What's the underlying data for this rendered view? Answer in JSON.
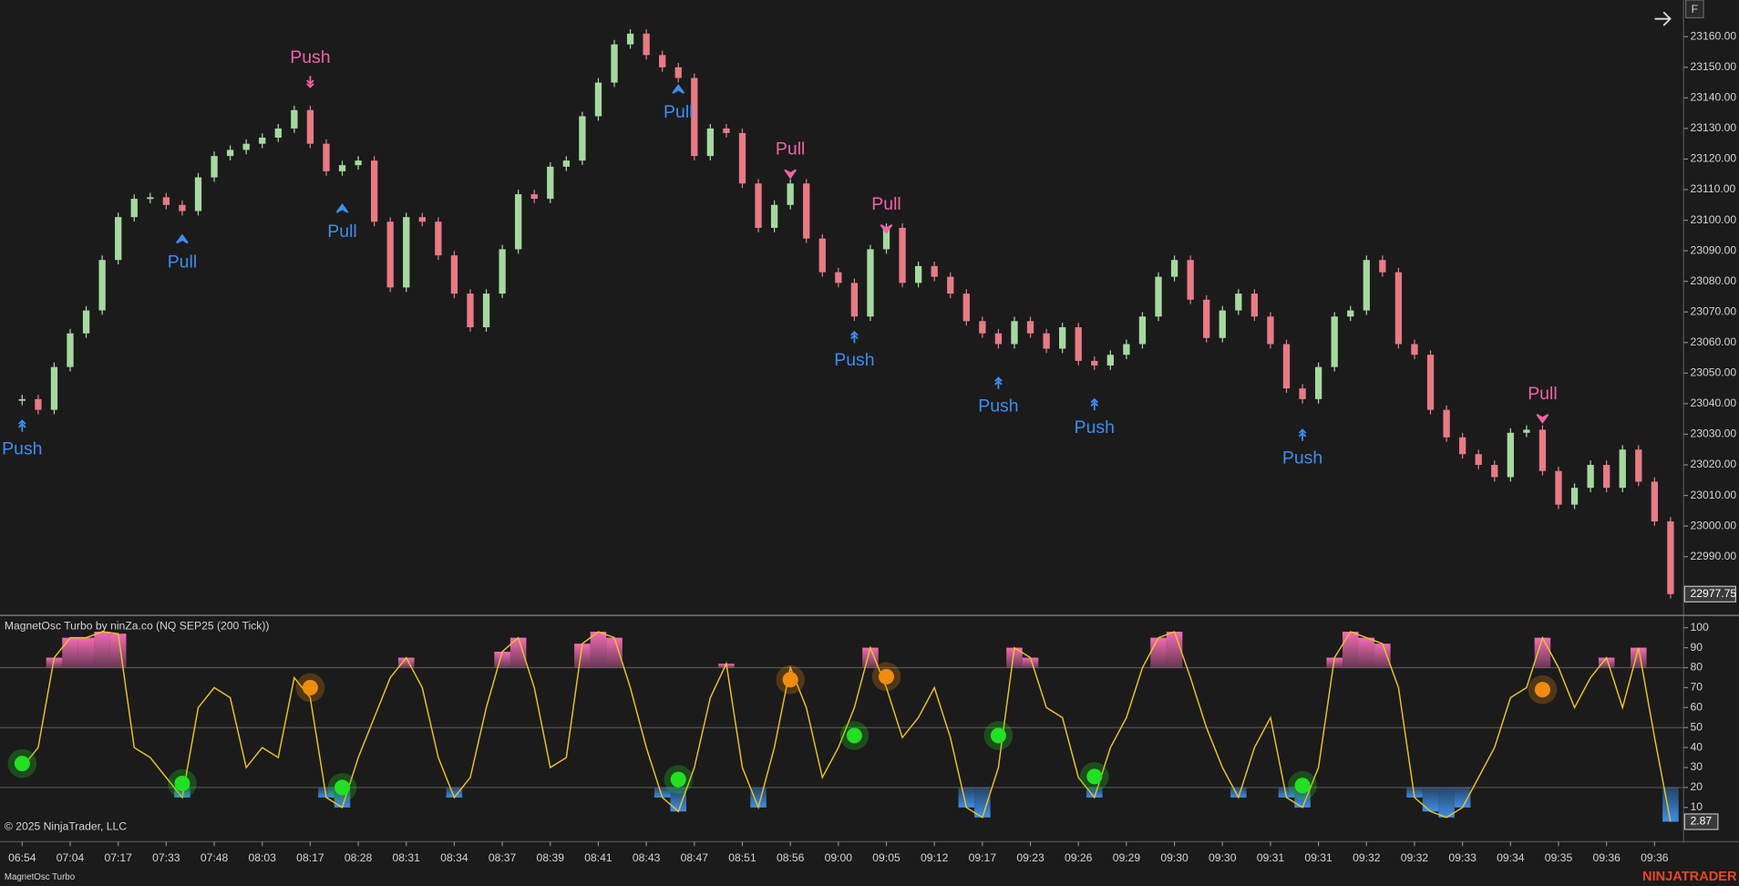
{
  "chart_data": [
    {
      "type": "candlestick",
      "categories": [
        "06:54",
        null,
        null,
        "07:04",
        null,
        null,
        "07:17",
        null,
        null,
        "07:33",
        null,
        null,
        "07:48",
        null,
        null,
        "08:03",
        null,
        null,
        "08:17",
        null,
        null,
        "08:28",
        null,
        null,
        "08:31",
        null,
        null,
        "08:34",
        null,
        null,
        "08:37",
        null,
        null,
        "08:39",
        null,
        null,
        "08:41",
        null,
        null,
        "08:43",
        null,
        null,
        "08:47",
        null,
        null,
        "08:51",
        null,
        null,
        "08:56",
        null,
        null,
        "09:00",
        null,
        null,
        "09:05",
        null,
        null,
        "09:12",
        null,
        null,
        "09:17",
        null,
        null,
        "09:23",
        null,
        null,
        "09:26",
        null,
        null,
        "09:29",
        null,
        null,
        "09:30",
        null,
        null,
        "09:30",
        null,
        null,
        "09:31",
        null,
        null,
        "09:31",
        null,
        null,
        "09:32",
        null,
        null,
        "09:32",
        null,
        null,
        "09:33",
        null,
        null,
        "09:34",
        null,
        null,
        "09:35",
        null,
        null,
        "09:36",
        null,
        null,
        "09:36",
        null
      ],
      "values": [
        23041.5,
        23038,
        23052,
        23063,
        23070.5,
        23087,
        23101,
        23107,
        23107.5,
        23105,
        23103,
        23114,
        23121,
        23123,
        23125,
        23127,
        23130,
        23136,
        23125,
        23116,
        23118,
        23119.5,
        23099.5,
        23078,
        23101,
        23099.5,
        23088.5,
        23076,
        23065,
        23076,
        23090.5,
        23108.5,
        23107,
        23117.5,
        23119.5,
        23134,
        23145,
        23157.5,
        23161,
        23154,
        23150,
        23146.5,
        23121,
        23130,
        23128.5,
        23112,
        23097.5,
        23105,
        23112,
        23094,
        23083,
        23079.5,
        23068.5,
        23090.5,
        23097.5,
        23079.5,
        23085,
        23081.5,
        23076,
        23067,
        23063,
        23059.5,
        23067,
        23063,
        23058,
        23065,
        23054,
        23052.5,
        23056,
        23059.5,
        23068.5,
        23081.5,
        23087,
        23074,
        23061.5,
        23070.5,
        23076,
        23068.5,
        23059.5,
        23045,
        23041.5,
        23052,
        23068.5,
        23070.5,
        23087,
        23083,
        23059.5,
        23056,
        23038,
        23029,
        23023.5,
        23020,
        23016,
        23030.5,
        23031.5,
        23018,
        23007,
        23012.5,
        23020,
        23012.5,
        23025,
        23014.5,
        23001.5,
        22977.75
      ],
      "up_color": "#a6d9a0",
      "down_color": "#e77b86",
      "ylim": [
        22971.5,
        23172
      ],
      "yticks": [
        {
          "value": 22990,
          "label": "22990.00"
        },
        {
          "value": 23000,
          "label": "23000.00"
        },
        {
          "value": 23010,
          "label": "23010.00"
        },
        {
          "value": 23020,
          "label": "23020.00"
        },
        {
          "value": 23030,
          "label": "23030.00"
        },
        {
          "value": 23040,
          "label": "23040.00"
        },
        {
          "value": 23050,
          "label": "23050.00"
        },
        {
          "value": 23060,
          "label": "23060.00"
        },
        {
          "value": 23070,
          "label": "23070.00"
        },
        {
          "value": 23080,
          "label": "23080.00"
        },
        {
          "value": 23090,
          "label": "23090.00"
        },
        {
          "value": 23100,
          "label": "23100.00"
        },
        {
          "value": 23110,
          "label": "23110.00"
        },
        {
          "value": 23120,
          "label": "23120.00"
        },
        {
          "value": 23130,
          "label": "23130.00"
        },
        {
          "value": 23140,
          "label": "23140.00"
        },
        {
          "value": 23150,
          "label": "23150.00"
        },
        {
          "value": 23160,
          "label": "23160.00"
        }
      ],
      "signals": [
        {
          "text": "Push",
          "index": 0,
          "price": 23033,
          "direction": "up",
          "marker": "double",
          "color": "#3d8ef0"
        },
        {
          "text": "Pull",
          "index": 10,
          "price": 23094,
          "direction": "up",
          "marker": "chevron",
          "color": "#3d8ef0"
        },
        {
          "text": "Push",
          "index": 18,
          "price": 23145,
          "direction": "down",
          "marker": "double",
          "color": "#f062a8"
        },
        {
          "text": "Pull",
          "index": 20,
          "price": 23104,
          "direction": "up",
          "marker": "chevron",
          "color": "#3d8ef0"
        },
        {
          "text": "Pull",
          "index": 41,
          "price": 23143,
          "direction": "up",
          "marker": "chevron",
          "color": "#3d8ef0"
        },
        {
          "text": "Pull",
          "index": 48,
          "price": 23115,
          "direction": "down",
          "marker": "chevron",
          "color": "#f062a8"
        },
        {
          "text": "Push",
          "index": 52,
          "price": 23062,
          "direction": "up",
          "marker": "double",
          "color": "#3d8ef0"
        },
        {
          "text": "Pull",
          "index": 54,
          "price": 23097,
          "direction": "down",
          "marker": "chevron",
          "color": "#f062a8"
        },
        {
          "text": "Push",
          "index": 61,
          "price": 23047,
          "direction": "up",
          "marker": "double",
          "color": "#3d8ef0"
        },
        {
          "text": "Push",
          "index": 67,
          "price": 23040,
          "direction": "up",
          "marker": "double",
          "color": "#3d8ef0"
        },
        {
          "text": "Push",
          "index": 80,
          "price": 23030,
          "direction": "up",
          "marker": "double",
          "color": "#3d8ef0"
        },
        {
          "text": "Pull",
          "index": 95,
          "price": 23035,
          "direction": "down",
          "marker": "chevron",
          "color": "#f062a8"
        }
      ]
    },
    {
      "type": "line",
      "title": "MagnetOsc Turbo by ninZa.co (NQ SEP25 (200 Tick))",
      "values": [
        30,
        40,
        85,
        95,
        95,
        98,
        97,
        40,
        35,
        25,
        15,
        60,
        70,
        65,
        30,
        40,
        35,
        75,
        65,
        15,
        10,
        35,
        55,
        75,
        85,
        70,
        35,
        15,
        25,
        60,
        88,
        95,
        70,
        30,
        35,
        92,
        98,
        95,
        70,
        40,
        15,
        8,
        30,
        65,
        82,
        30,
        10,
        40,
        80,
        60,
        25,
        40,
        60,
        90,
        70,
        45,
        55,
        70,
        45,
        10,
        5,
        30,
        90,
        85,
        60,
        55,
        25,
        15,
        40,
        55,
        80,
        95,
        98,
        75,
        50,
        30,
        15,
        40,
        55,
        15,
        10,
        30,
        85,
        98,
        95,
        92,
        70,
        15,
        8,
        5,
        10,
        25,
        40,
        65,
        70,
        95,
        80,
        60,
        75,
        85,
        60,
        90,
        45,
        2.87
      ],
      "color": "#e8c22c",
      "upper_fill": "#f36cb4",
      "lower_fill": "#3d8ee6",
      "ylim": [
        -6,
        105.6
      ],
      "yticks": [
        10,
        20,
        30,
        40,
        50,
        60,
        70,
        80,
        90,
        100
      ],
      "levels": [
        20,
        50,
        80
      ],
      "dots": [
        {
          "index": 0,
          "value": 32,
          "color": "#22e022"
        },
        {
          "index": 10,
          "value": 22,
          "color": "#22e022"
        },
        {
          "index": 20,
          "value": 20,
          "color": "#22e022"
        },
        {
          "index": 41,
          "value": 24,
          "color": "#22e022"
        },
        {
          "index": 52,
          "value": 46,
          "color": "#22e022"
        },
        {
          "index": 61,
          "value": 46,
          "color": "#22e022"
        },
        {
          "index": 67,
          "value": 25.5,
          "color": "#22e022"
        },
        {
          "index": 80,
          "value": 21,
          "color": "#22e022"
        },
        {
          "index": 18,
          "value": 70,
          "color": "#f08c10"
        },
        {
          "index": 48,
          "value": 74,
          "color": "#f08c10"
        },
        {
          "index": 54,
          "value": 75.5,
          "color": "#f08c10"
        },
        {
          "index": 95,
          "value": 69,
          "color": "#f08c10"
        }
      ]
    }
  ],
  "copyright": "© 2025 NinjaTrader, LLC",
  "footer_tab": "MagnetOsc Turbo",
  "brand": "NINJATRADER",
  "corner_button": "F"
}
